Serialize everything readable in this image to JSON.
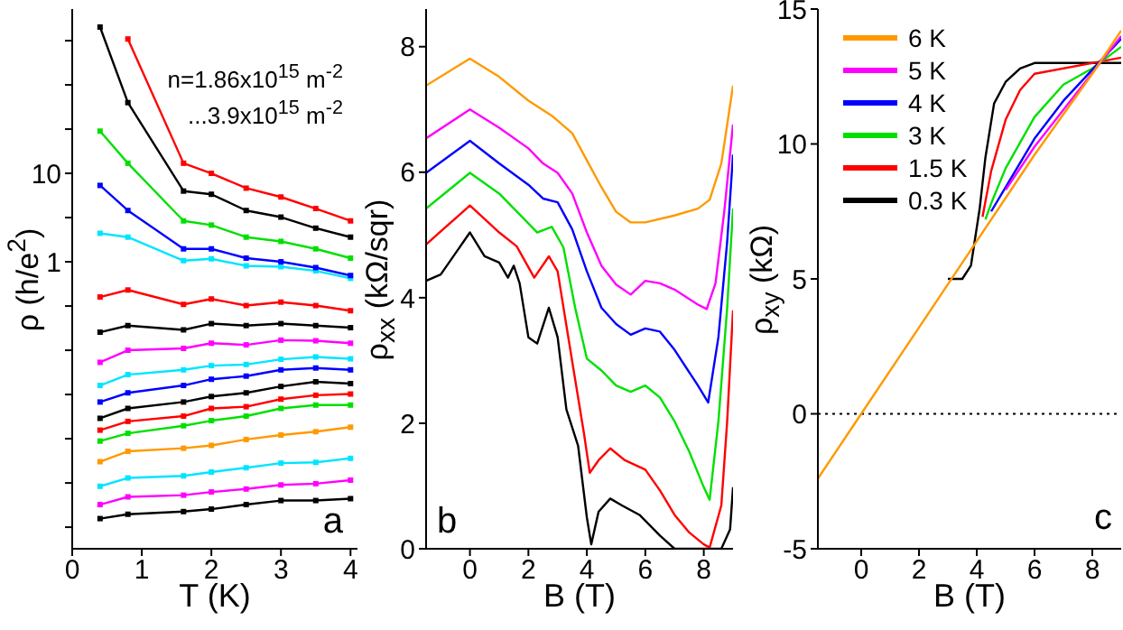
{
  "chart_data": [
    {
      "type": "line",
      "xlabel": "T (K)",
      "ylabel": "ρ (h/e$^{2}$)",
      "log": "y",
      "marker": "square",
      "annotations": [
        "n=1.86x10$^{15}$ m$^{-2}$",
        "...3.9x10$^{15}$ m$^{-2}$",
        "a"
      ],
      "xlim": [
        0,
        4.1
      ],
      "xticks": [
        0,
        1,
        2,
        3,
        4
      ],
      "ylim": [
        0.00057,
        720
      ],
      "yticks": [
        {
          "value": 0.001,
          "label": null
        },
        {
          "value": 0.00316,
          "label": null
        },
        {
          "value": 0.01,
          "label": null
        },
        {
          "value": 0.0316,
          "label": null
        },
        {
          "value": 0.1,
          "label": null
        },
        {
          "value": 0.316,
          "label": null
        },
        1,
        {
          "value": 3.16,
          "label": null
        },
        10,
        {
          "value": 31.6,
          "label": null
        },
        {
          "value": 100,
          "label": null
        },
        {
          "value": 316,
          "label": null
        }
      ],
      "x": [
        0.4,
        0.8,
        1.6,
        2,
        2.5,
        3,
        3.5,
        4
      ],
      "series": [
        {
          "color": "#000000",
          "values": [
            450,
            63,
            6.3,
            5.8,
            3.8,
            3.2,
            2.4,
            1.9
          ]
        },
        {
          "color": "#ff0000",
          "values": [
            null,
            330,
            13,
            10,
            6.8,
            5.4,
            4.0,
            2.9
          ]
        },
        {
          "color": "#00e000",
          "values": [
            30,
            13,
            2.9,
            2.6,
            1.9,
            1.7,
            1.4,
            1.1
          ]
        },
        {
          "color": "#0000ff",
          "values": [
            7.3,
            3.8,
            1.4,
            1.4,
            1.1,
            1.0,
            0.86,
            0.7
          ]
        },
        {
          "color": "#00e5ff",
          "values": [
            2.1,
            1.9,
            1.03,
            1.08,
            0.9,
            0.88,
            0.79,
            0.65
          ]
        },
        {
          "color": "#ff0000",
          "values": [
            0.4,
            0.48,
            0.33,
            0.38,
            0.32,
            0.35,
            0.32,
            0.28
          ]
        },
        {
          "color": "#000000",
          "values": [
            0.16,
            0.19,
            0.17,
            0.2,
            0.19,
            0.2,
            0.19,
            0.18
          ]
        },
        {
          "color": "#ff00ff",
          "values": [
            0.073,
            0.1,
            0.105,
            0.12,
            0.115,
            0.13,
            0.128,
            0.12
          ]
        },
        {
          "color": "#00e5ff",
          "values": [
            0.04,
            0.053,
            0.06,
            0.067,
            0.069,
            0.079,
            0.084,
            0.08
          ]
        },
        {
          "color": "#0000ff",
          "values": [
            0.026,
            0.033,
            0.04,
            0.047,
            0.051,
            0.06,
            0.063,
            0.06
          ]
        },
        {
          "color": "#000000",
          "values": [
            0.017,
            0.022,
            0.026,
            0.03,
            0.033,
            0.039,
            0.044,
            0.042
          ]
        },
        {
          "color": "#ff0000",
          "values": [
            0.0125,
            0.0157,
            0.018,
            0.022,
            0.023,
            0.028,
            0.031,
            0.032
          ]
        },
        {
          "color": "#00e000",
          "values": [
            0.0094,
            0.0115,
            0.014,
            0.016,
            0.018,
            0.022,
            0.024,
            0.024
          ]
        },
        {
          "color": "#ff9900",
          "values": [
            0.0055,
            0.0072,
            0.0078,
            0.0084,
            0.0098,
            0.011,
            0.012,
            0.0135
          ]
        },
        {
          "color": "#00e5ff",
          "values": [
            0.0029,
            0.0036,
            0.0038,
            0.0042,
            0.0047,
            0.0053,
            0.0054,
            0.006
          ]
        },
        {
          "color": "#ff00ff",
          "values": [
            0.0018,
            0.0022,
            0.0023,
            0.0025,
            0.0027,
            0.003,
            0.0031,
            0.0034
          ]
        },
        {
          "color": "#000000",
          "values": [
            0.00125,
            0.0014,
            0.0015,
            0.0016,
            0.0018,
            0.002,
            0.002,
            0.0021
          ]
        }
      ]
    },
    {
      "type": "line",
      "xlabel": "B (T)",
      "ylabel": "ρ$_{xx}$ (kΩ/sqr)",
      "annotations": [
        "b"
      ],
      "xlim": [
        -1.5,
        9
      ],
      "xticks": [
        0,
        2,
        4,
        6,
        8
      ],
      "ylim": [
        0,
        8.6
      ],
      "yticks": [
        0,
        2,
        4,
        6,
        8
      ],
      "series": [
        {
          "color": "#ff9900",
          "x": [
            -1.5,
            0,
            1,
            2,
            2.8,
            3.5,
            4,
            4.5,
            5,
            5.5,
            6,
            7,
            7.8,
            8.2,
            8.6,
            9
          ],
          "values": [
            7.38,
            7.81,
            7.52,
            7.14,
            6.9,
            6.62,
            6.19,
            5.76,
            5.37,
            5.2,
            5.2,
            5.31,
            5.42,
            5.56,
            6.14,
            7.38
          ]
        },
        {
          "color": "#ff00ff",
          "x": [
            -1.5,
            0,
            1,
            2,
            2.5,
            3,
            3.5,
            4,
            4.5,
            5,
            5.5,
            6,
            6.5,
            7,
            7.8,
            8.1,
            8.4,
            8.7,
            9
          ],
          "values": [
            6.54,
            7.0,
            6.71,
            6.38,
            6.14,
            5.99,
            5.66,
            5.04,
            4.51,
            4.21,
            4.05,
            4.27,
            4.23,
            4.13,
            3.89,
            3.82,
            4.23,
            5.37,
            6.76
          ]
        },
        {
          "color": "#0000ff",
          "x": [
            -1.5,
            0,
            1,
            2,
            2.5,
            3,
            3.5,
            4,
            4.5,
            5,
            5.5,
            6,
            6.5,
            7,
            7.8,
            8.15,
            8.5,
            8.8,
            9
          ],
          "values": [
            5.99,
            6.5,
            6.14,
            5.8,
            5.58,
            5.52,
            5.09,
            4.42,
            3.84,
            3.58,
            3.41,
            3.51,
            3.46,
            3.17,
            2.6,
            2.33,
            3.37,
            4.89,
            6.28
          ]
        },
        {
          "color": "#00e000",
          "x": [
            -1.5,
            0,
            1,
            1.8,
            2.3,
            2.8,
            3.2,
            3.6,
            4,
            4.5,
            5,
            5.5,
            6,
            6.5,
            7,
            7.5,
            8,
            8.2,
            8.5,
            8.8,
            9
          ],
          "values": [
            5.42,
            5.99,
            5.66,
            5.28,
            5.04,
            5.13,
            4.8,
            3.84,
            3.03,
            2.84,
            2.6,
            2.5,
            2.6,
            2.41,
            2.03,
            1.55,
            0.98,
            0.78,
            2.03,
            3.84,
            5.42
          ]
        },
        {
          "color": "#ff0000",
          "x": [
            -1.5,
            0,
            1,
            1.6,
            2.2,
            2.7,
            3,
            3.5,
            3.9,
            4.1,
            4.4,
            4.8,
            5.3,
            6,
            6.5,
            7,
            7.5,
            8,
            8.2,
            8.6,
            8.8,
            9
          ],
          "values": [
            4.85,
            5.47,
            5.04,
            4.82,
            4.32,
            4.66,
            4.42,
            2.98,
            1.84,
            1.21,
            1.41,
            1.6,
            1.41,
            1.26,
            0.93,
            0.54,
            0.26,
            0.07,
            0.02,
            0.69,
            2.03,
            3.8
          ]
        },
        {
          "color": "#000000",
          "x": [
            -1.5,
            -1,
            0,
            0.5,
            1,
            1.3,
            1.5,
            1.7,
            2,
            2.3,
            2.7,
            3,
            3.3,
            3.7,
            4,
            4.15,
            4.4,
            4.8,
            5.2,
            5.8,
            6.5,
            7,
            8,
            8.6,
            8.9,
            9
          ],
          "values": [
            4.27,
            4.37,
            5.04,
            4.66,
            4.56,
            4.32,
            4.51,
            4.23,
            3.37,
            3.27,
            3.84,
            3.37,
            2.22,
            1.64,
            0.5,
            0.07,
            0.59,
            0.8,
            0.69,
            0.54,
            0.21,
            0,
            0,
            0,
            0.31,
            0.98
          ]
        }
      ]
    },
    {
      "type": "line",
      "xlabel": "B (T)",
      "ylabel": "ρ$_{xy}$ (kΩ)",
      "annotations": [
        "c"
      ],
      "legend": "top left",
      "xlim": [
        -1.5,
        9
      ],
      "xticks": [
        0,
        2,
        4,
        6,
        8
      ],
      "ylim": [
        -5,
        15
      ],
      "yticks": [
        -5,
        0,
        5,
        10,
        15
      ],
      "ref_lines": [
        {
          "axis": "y",
          "value": 0,
          "color": "#000000",
          "line_style": "dotted"
        }
      ],
      "series": [
        {
          "name": "6 K",
          "color": "#ff9900",
          "x": [
            -1.5,
            0,
            2,
            4,
            6,
            8,
            9
          ],
          "values": [
            -2.4,
            0,
            3.2,
            6.4,
            9.6,
            12.6,
            14.2
          ]
        },
        {
          "name": "5 K",
          "color": "#ff00ff",
          "x": [
            5,
            6,
            9
          ],
          "values": [
            8.3,
            9.9,
            14.0
          ]
        },
        {
          "name": "4 K",
          "color": "#0000ff",
          "x": [
            4.5,
            5,
            6,
            7,
            9
          ],
          "values": [
            7.5,
            8.4,
            10.2,
            11.6,
            13.9
          ]
        },
        {
          "name": "3 K",
          "color": "#00e000",
          "x": [
            4.3,
            4.5,
            5,
            6,
            7,
            8,
            9
          ],
          "values": [
            7.2,
            7.8,
            9.1,
            11.0,
            12.2,
            12.8,
            13.6
          ]
        },
        {
          "name": "1.5 K",
          "color": "#ff0000",
          "x": [
            4.2,
            4.5,
            5,
            5.5,
            6,
            9
          ],
          "values": [
            7.3,
            9.0,
            10.9,
            12.0,
            12.6,
            13.2
          ]
        },
        {
          "name": "0.3 K",
          "color": "#000000",
          "x": [
            3,
            3.5,
            3.8,
            4.1,
            4.3,
            4.6,
            5,
            5.5,
            6,
            7,
            9
          ],
          "values": [
            5.0,
            5.0,
            5.5,
            7.6,
            9.5,
            11.5,
            12.3,
            12.8,
            13.0,
            13.0,
            13.0
          ]
        }
      ]
    }
  ]
}
